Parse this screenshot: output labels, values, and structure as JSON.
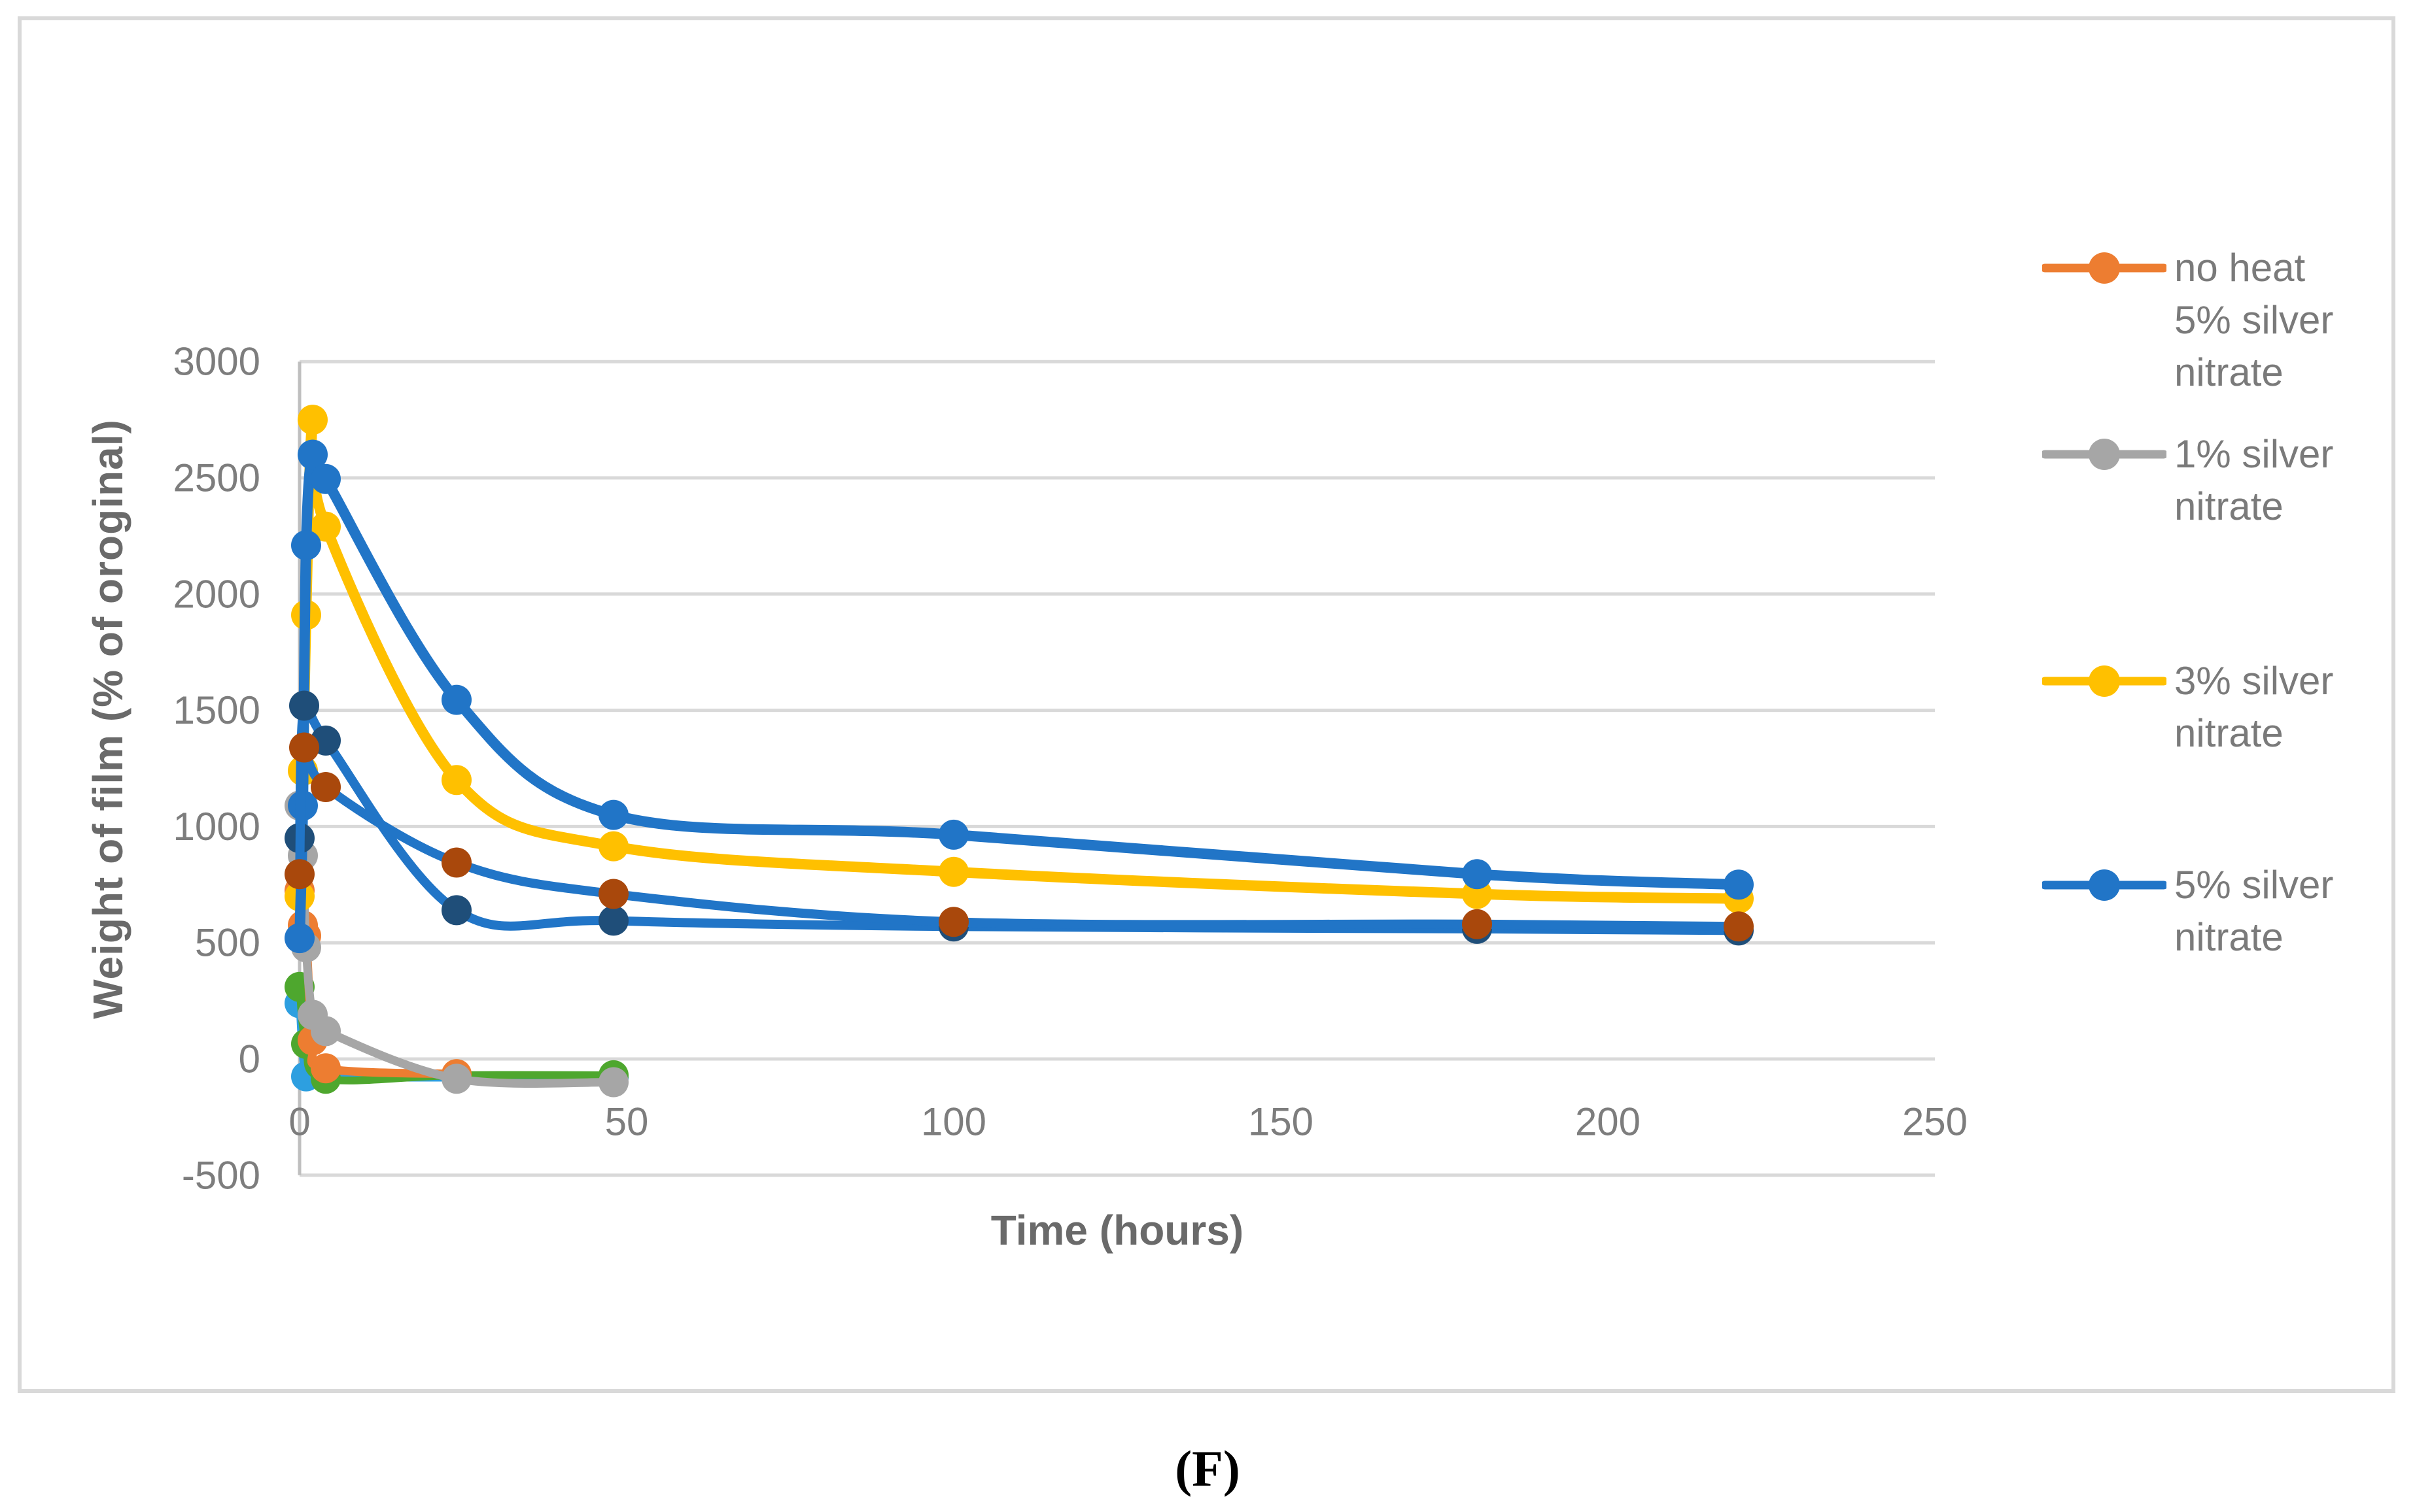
{
  "figure": {
    "caption": "(F)",
    "background": "#FFFFFF",
    "border_color": "#D9D9D9"
  },
  "chart_data": {
    "type": "line",
    "title": "",
    "xlabel": "Time (hours)",
    "ylabel": "Weight of film (% of oroginal)",
    "xlim": [
      0,
      250
    ],
    "ylim": [
      -500,
      3000
    ],
    "x_ticks": [
      0,
      50,
      100,
      150,
      200,
      250
    ],
    "y_ticks": [
      3000,
      2500,
      2000,
      1500,
      1000,
      500,
      0,
      -500
    ],
    "grid": "horizontal",
    "legend_position": "right",
    "colors": {
      "gridline": "#D9D9D9",
      "axis_line": "#BFBFBF",
      "tick_text": "#7D7D7D",
      "axis_title_text": "#6A6A6A"
    },
    "series": [
      {
        "name": "light blue series (not in legend)",
        "in_legend": false,
        "line_color": "#2D9FE0",
        "marker_color": "#2D9FE0",
        "line_width": 12,
        "x": [
          0,
          1,
          4,
          24,
          48
        ],
        "y": [
          240,
          -75,
          -80,
          -80,
          -80
        ]
      },
      {
        "name": "green series (not in legend)",
        "in_legend": false,
        "line_color": "#4EA72E",
        "marker_color": "#4EA72E",
        "line_width": 12,
        "x": [
          0,
          1,
          4,
          24,
          48
        ],
        "y": [
          310,
          65,
          -85,
          -70,
          -70
        ]
      },
      {
        "name": "no heat 5% silver nitrate",
        "in_legend": true,
        "line_color": "#ED7D31",
        "marker_color": "#ED7D31",
        "line_width": 13,
        "x": [
          0,
          0.5,
          1,
          2,
          4,
          24
        ],
        "y": [
          725,
          575,
          530,
          80,
          -40,
          -65
        ]
      },
      {
        "name": "1% silver nitrate",
        "in_legend": true,
        "line_color": "#A6A6A6",
        "marker_color": "#A6A6A6",
        "line_width": 13,
        "x": [
          0,
          0.5,
          1,
          2,
          4,
          24,
          48
        ],
        "y": [
          1090,
          875,
          480,
          190,
          120,
          -85,
          -100
        ]
      },
      {
        "name": "3% silver nitrate",
        "in_legend": true,
        "line_color": "#FFC000",
        "marker_color": "#FFC000",
        "line_width": 16,
        "x": [
          0,
          0.5,
          1,
          2,
          4,
          24,
          48,
          100,
          180,
          220
        ],
        "y": [
          700,
          1240,
          1910,
          2750,
          2290,
          1200,
          915,
          805,
          710,
          690
        ]
      },
      {
        "name": "5% silver nitrate",
        "in_legend": true,
        "line_color": "#2175C7",
        "marker_color": "#2175C7",
        "line_width": 16,
        "x": [
          0,
          0.5,
          1,
          2,
          4,
          24,
          48,
          100,
          180,
          220
        ],
        "y": [
          520,
          1090,
          2210,
          2600,
          2495,
          1545,
          1050,
          965,
          795,
          750
        ]
      },
      {
        "name": "navy marker series (not in legend)",
        "in_legend": false,
        "line_color": "#2175C7",
        "marker_color": "#1F4E79",
        "line_width": 14,
        "x": [
          0,
          0.7,
          4,
          24,
          48,
          100,
          180,
          220
        ],
        "y": [
          950,
          1520,
          1370,
          640,
          595,
          570,
          560,
          553
        ]
      },
      {
        "name": "dark red marker series (not in legend)",
        "in_legend": false,
        "line_color": "#2175C7",
        "marker_color": "#A9480C",
        "line_width": 14,
        "x": [
          0,
          0.7,
          4,
          24,
          48,
          100,
          180,
          220
        ],
        "y": [
          795,
          1340,
          1170,
          845,
          710,
          590,
          580,
          570
        ]
      }
    ],
    "legend": [
      {
        "label": "no heat 5% silver nitrate",
        "label_lines": [
          "no heat",
          "5% silver",
          "nitrate"
        ],
        "color": "#ED7D31",
        "sample_y": 410
      },
      {
        "label": "1% silver nitrate",
        "label_lines": [
          "1% silver",
          "nitrate"
        ],
        "color": "#A6A6A6",
        "sample_y": 695
      },
      {
        "label": "3% silver nitrate",
        "label_lines": [
          "3% silver",
          "nitrate"
        ],
        "color": "#FFC000",
        "sample_y": 1042
      },
      {
        "label": "5% silver nitrate",
        "label_lines": [
          "5% silver",
          "nitrate"
        ],
        "color": "#2175C7",
        "sample_y": 1354
      }
    ]
  }
}
